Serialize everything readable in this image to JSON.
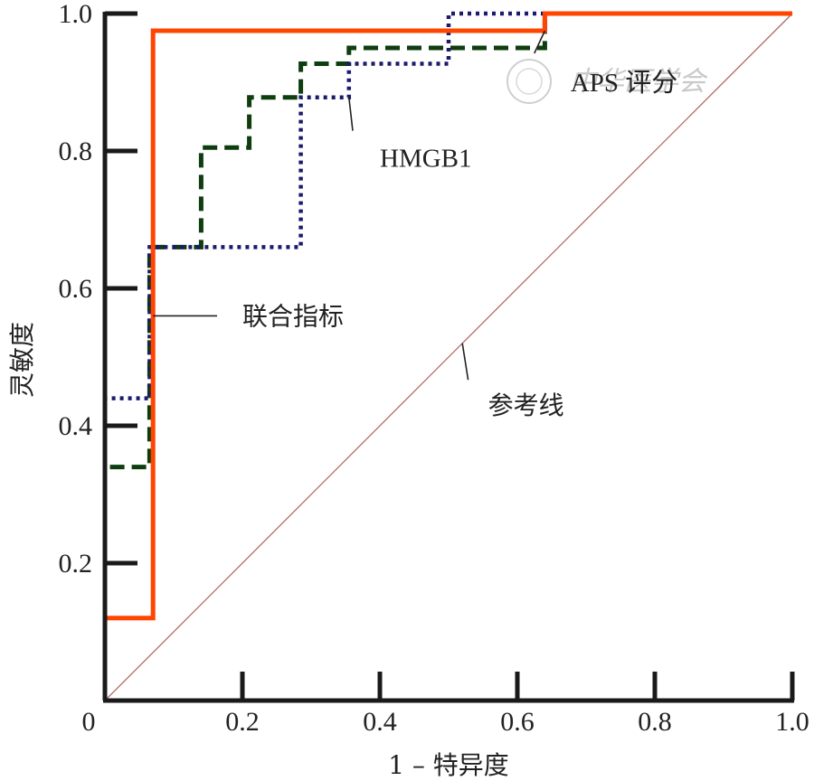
{
  "chart_data": {
    "type": "line",
    "xlabel": "1 – 特异度",
    "ylabel": "灵敏度",
    "xlim": [
      0,
      1.0
    ],
    "ylim": [
      0,
      1.0
    ],
    "x_ticks": [
      "0",
      "0.2",
      "0.4",
      "0.6",
      "0.8",
      "1.0"
    ],
    "y_ticks": [
      "0.2",
      "0.4",
      "0.6",
      "0.8",
      "1.0"
    ],
    "grid": false,
    "series": [
      {
        "name": "联合指标",
        "color": "#ff4500",
        "style": "solid",
        "points": [
          [
            0,
            0
          ],
          [
            0,
            0.12
          ],
          [
            0.07,
            0.12
          ],
          [
            0.07,
            0.975
          ],
          [
            0.64,
            0.975
          ],
          [
            0.64,
            1.0
          ],
          [
            1.0,
            1.0
          ]
        ]
      },
      {
        "name": "HMGB1",
        "color": "#1a1a6e",
        "style": "dotted",
        "points": [
          [
            0,
            0
          ],
          [
            0,
            0.44
          ],
          [
            0.065,
            0.44
          ],
          [
            0.065,
            0.66
          ],
          [
            0.285,
            0.66
          ],
          [
            0.285,
            0.878
          ],
          [
            0.355,
            0.878
          ],
          [
            0.355,
            0.927
          ],
          [
            0.5,
            0.927
          ],
          [
            0.5,
            1.0
          ],
          [
            1.0,
            1.0
          ]
        ]
      },
      {
        "name": "APS 评分",
        "color": "#0e3d0e",
        "style": "dashed",
        "points": [
          [
            0,
            0
          ],
          [
            0,
            0.34
          ],
          [
            0.065,
            0.34
          ],
          [
            0.065,
            0.66
          ],
          [
            0.14,
            0.66
          ],
          [
            0.14,
            0.805
          ],
          [
            0.21,
            0.805
          ],
          [
            0.21,
            0.878
          ],
          [
            0.285,
            0.878
          ],
          [
            0.285,
            0.927
          ],
          [
            0.355,
            0.927
          ],
          [
            0.355,
            0.95
          ],
          [
            0.64,
            0.95
          ],
          [
            0.64,
            1.0
          ],
          [
            1.0,
            1.0
          ]
        ]
      },
      {
        "name": "参考线",
        "color": "#b06a6a",
        "style": "thin",
        "points": [
          [
            0,
            0
          ],
          [
            1.0,
            1.0
          ]
        ]
      }
    ],
    "annotations": [
      {
        "text": "联合指标",
        "target": [
          0.07,
          0.56
        ],
        "label_at": [
          0.2,
          0.56
        ]
      },
      {
        "text": "HMGB1",
        "target": [
          0.355,
          0.878
        ],
        "label_at": [
          0.4,
          0.79
        ]
      },
      {
        "text": "APS 评分",
        "target": [
          0.64,
          0.975
        ],
        "label_at": [
          0.68,
          0.9
        ]
      },
      {
        "text": "参考线",
        "target": [
          0.52,
          0.52
        ],
        "label_at": [
          0.56,
          0.43
        ]
      }
    ]
  },
  "watermark": {
    "text": "中华医学会",
    "color": "#c9c9c9"
  }
}
